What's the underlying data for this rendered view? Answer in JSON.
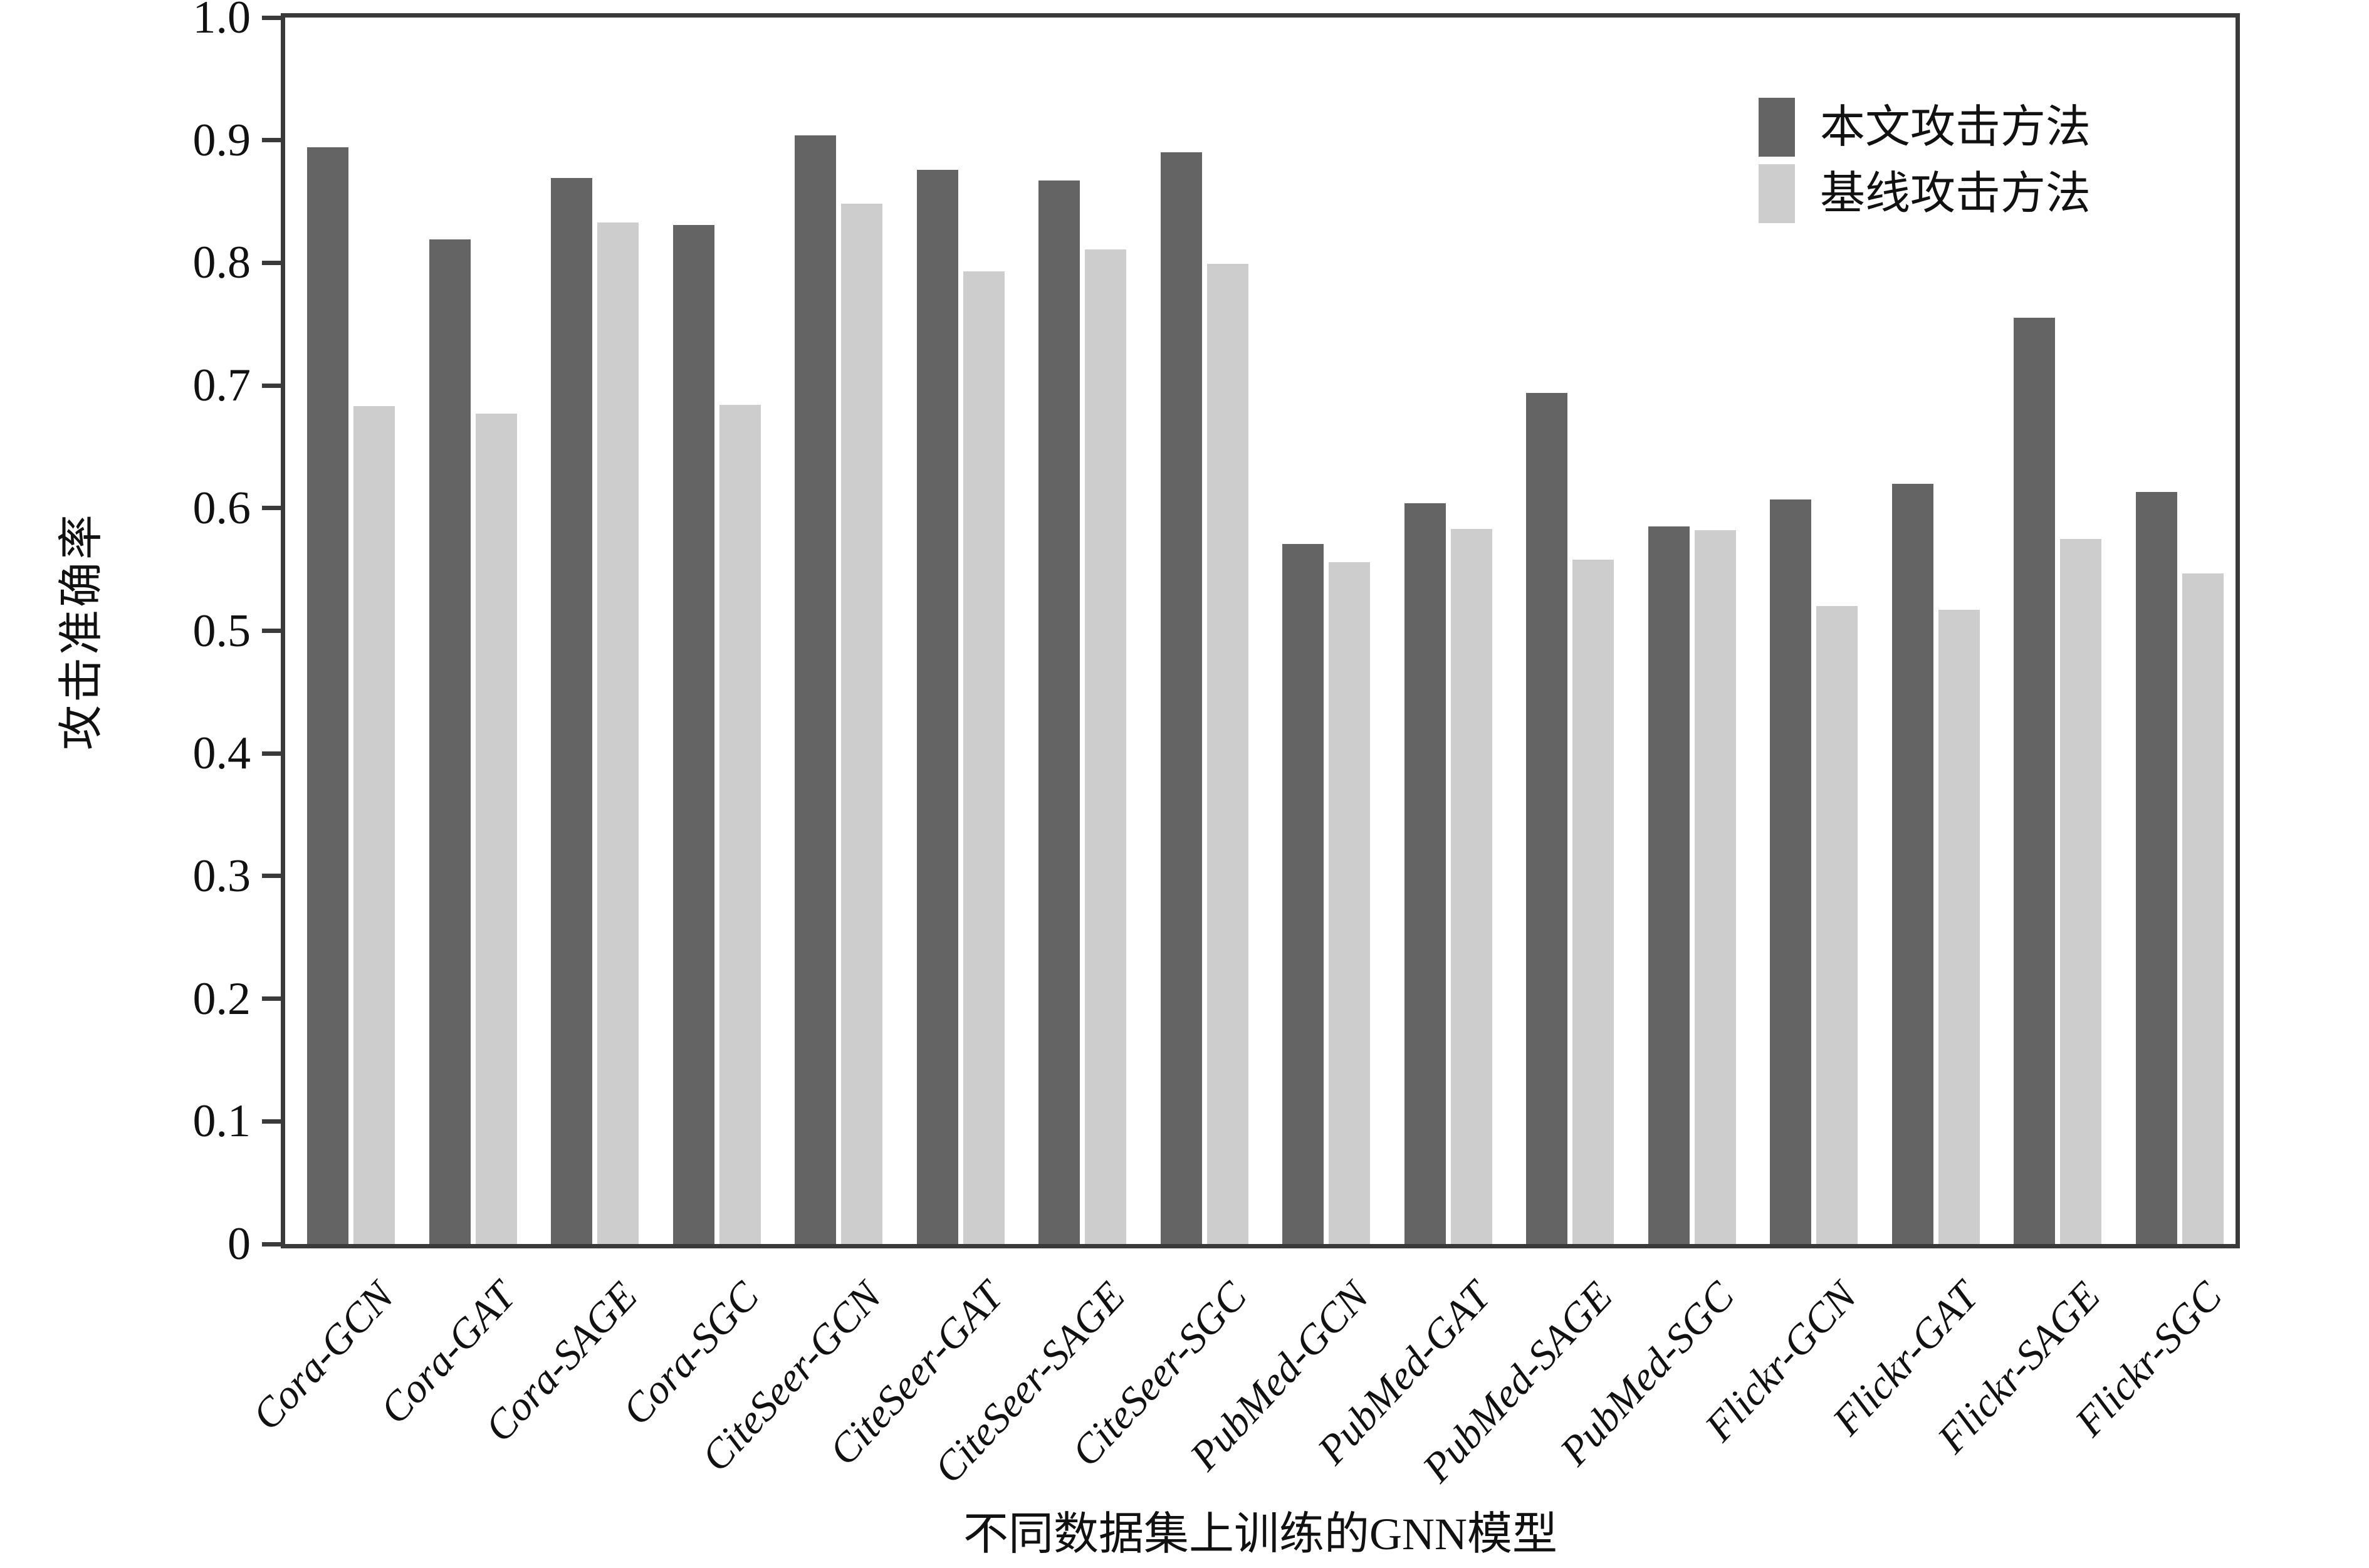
{
  "figure": {
    "background_color": "#ffffff",
    "frame_color": "#3a3a3a",
    "text_color": "#111111",
    "bar_gap_color": "#ffffff"
  },
  "chart_data": {
    "type": "bar",
    "title": "",
    "xlabel": "不同数据集上训练的GNN模型",
    "ylabel": "攻击准确率",
    "categories": [
      "Cora-GCN",
      "Cora-GAT",
      "Cora-SAGE",
      "Cora-SGC",
      "CiteSeer-GCN",
      "CiteSeer-GAT",
      "CiteSeer-SAGE",
      "CiteSeer-SGC",
      "PubMed-GCN",
      "PubMed-GAT",
      "PubMed-SAGE",
      "PubMed-SGC",
      "Flickr-GCN",
      "Flickr-GAT",
      "Flickr-SAGE",
      "Flickr-SGC"
    ],
    "series": [
      {
        "name": "本文攻击方法",
        "color": "#646464",
        "values": [
          0.894,
          0.819,
          0.869,
          0.831,
          0.904,
          0.876,
          0.867,
          0.89,
          0.571,
          0.604,
          0.694,
          0.585,
          0.607,
          0.62,
          0.755,
          0.613
        ]
      },
      {
        "name": "基线攻击方法",
        "color": "#cdcdcd",
        "values": [
          0.683,
          0.677,
          0.833,
          0.684,
          0.848,
          0.793,
          0.811,
          0.799,
          0.556,
          0.583,
          0.558,
          0.582,
          0.52,
          0.517,
          0.575,
          0.547
        ]
      }
    ],
    "ylim": [
      0,
      1.0
    ],
    "yticks": [
      "0",
      "0.1",
      "0.2",
      "0.3",
      "0.4",
      "0.5",
      "0.6",
      "0.7",
      "0.8",
      "0.9",
      "1.0"
    ],
    "grid": false,
    "legend_position": "upper right",
    "x_tick_rotation_deg": 47
  }
}
